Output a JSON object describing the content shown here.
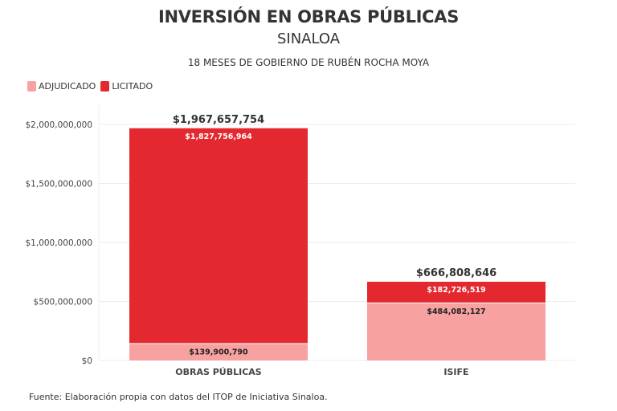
{
  "chart_data": {
    "type": "bar",
    "stacked": true,
    "title": "INVERSIÓN EN OBRAS PÚBLICAS",
    "subtitle": "SINALOA",
    "subsubtitle": "18 MESES DE GOBIERNO DE RUBÉN ROCHA MOYA",
    "categories": [
      "OBRAS PÚBLICAS",
      "ISIFE"
    ],
    "series": [
      {
        "name": "ADJUDICADO",
        "color": "#f7a1a1",
        "label_color": "#222222",
        "values": [
          139900790,
          484082127
        ],
        "labels": [
          "$139,900,790",
          "$484,082,127"
        ]
      },
      {
        "name": "LICITADO",
        "color": "#e3282f",
        "label_color": "#ffffff",
        "values": [
          1827756964,
          182726519
        ],
        "labels": [
          "$1,827,756,964",
          "$182,726,519"
        ]
      }
    ],
    "totals": [
      1967657754,
      666808646
    ],
    "total_labels": [
      "$1,967,657,754",
      "$666,808,646"
    ],
    "xlabel": "",
    "ylabel": "",
    "ylim": [
      0,
      2000000000
    ],
    "yticks": [
      0,
      500000000,
      1000000000,
      1500000000,
      2000000000
    ],
    "ytick_labels": [
      "$0",
      "$500,000,000",
      "$1,000,000,000",
      "$1,500,000,000",
      "$2,000,000,000"
    ],
    "grid": true,
    "legend_position": "top-left",
    "source": "Fuente: Elaboración propia con datos del ITOP de Iniciativa Sinaloa."
  }
}
